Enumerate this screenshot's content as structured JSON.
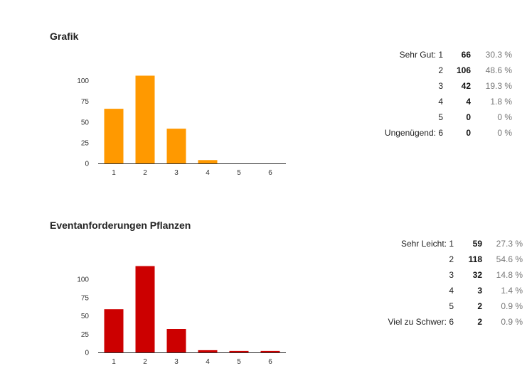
{
  "sections": [
    {
      "title": "Grafik",
      "color": "#ff9900",
      "rows": [
        {
          "label": "Sehr Gut: 1",
          "count": "66",
          "pct": "30.3 %"
        },
        {
          "label": "2",
          "count": "106",
          "pct": "48.6 %"
        },
        {
          "label": "3",
          "count": "42",
          "pct": "19.3 %"
        },
        {
          "label": "4",
          "count": "4",
          "pct": "1.8 %"
        },
        {
          "label": "5",
          "count": "0",
          "pct": "0 %"
        },
        {
          "label": "Ungenügend: 6",
          "count": "0",
          "pct": "0 %"
        }
      ]
    },
    {
      "title": "Eventanforderungen Pflanzen",
      "color": "#cc0000",
      "rows": [
        {
          "label": "Sehr Leicht: 1",
          "count": "59",
          "pct": "27.3 %"
        },
        {
          "label": "2",
          "count": "118",
          "pct": "54.6 %"
        },
        {
          "label": "3",
          "count": "32",
          "pct": "14.8 %"
        },
        {
          "label": "4",
          "count": "3",
          "pct": "1.4 %"
        },
        {
          "label": "5",
          "count": "2",
          "pct": "0.9 %"
        },
        {
          "label": "Viel zu Schwer: 6",
          "count": "2",
          "pct": "0.9 %"
        }
      ]
    }
  ],
  "chart_data": [
    {
      "type": "bar",
      "title": "Grafik",
      "categories": [
        "1",
        "2",
        "3",
        "4",
        "5",
        "6"
      ],
      "values": [
        66,
        106,
        42,
        4,
        0,
        0
      ],
      "yticks": [
        "0",
        "25",
        "50",
        "75",
        "100"
      ],
      "ylim": [
        0,
        115
      ],
      "color": "#ff9900",
      "grid": false,
      "legend": "none"
    },
    {
      "type": "bar",
      "title": "Eventanforderungen Pflanzen",
      "categories": [
        "1",
        "2",
        "3",
        "4",
        "5",
        "6"
      ],
      "values": [
        59,
        118,
        32,
        3,
        2,
        2
      ],
      "yticks": [
        "0",
        "25",
        "50",
        "75",
        "100"
      ],
      "ylim": [
        0,
        122
      ],
      "color": "#cc0000",
      "grid": false,
      "legend": "none"
    }
  ]
}
